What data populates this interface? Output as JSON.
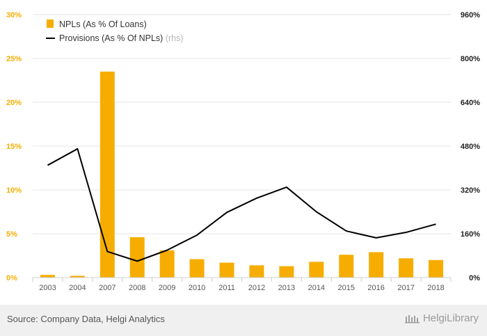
{
  "chart_data": {
    "type": "bar+line",
    "categories": [
      "2003",
      "2004",
      "2007",
      "2008",
      "2009",
      "2010",
      "2011",
      "2012",
      "2013",
      "2014",
      "2015",
      "2016",
      "2017",
      "2018"
    ],
    "series": [
      {
        "name": "NPLs (As % Of Loans)",
        "type": "bar",
        "axis": "left",
        "color": "#f6ad00",
        "values": [
          0.3,
          0.2,
          23.5,
          4.6,
          3.1,
          2.1,
          1.7,
          1.4,
          1.3,
          1.8,
          2.6,
          2.9,
          2.2,
          2.0
        ]
      },
      {
        "name": "Provisions (As % Of NPLs)",
        "name_suffix": "(rhs)",
        "type": "line",
        "axis": "right",
        "color": "#000000",
        "values": [
          410,
          470,
          95,
          60,
          100,
          155,
          238,
          290,
          330,
          240,
          170,
          145,
          165,
          195
        ]
      }
    ],
    "y_left": {
      "min": 0,
      "max": 30,
      "ticks": [
        "0%",
        "5%",
        "10%",
        "15%",
        "20%",
        "25%",
        "30%"
      ],
      "color": "#f6ad00"
    },
    "y_right": {
      "min": 0,
      "max": 960,
      "ticks": [
        "0%",
        "160%",
        "320%",
        "480%",
        "640%",
        "800%",
        "960%"
      ],
      "color": "#222222"
    },
    "grid": true,
    "legend_position": "top-left"
  },
  "footer": {
    "source": "Source: Company Data, Helgi Analytics",
    "brand": "HelgiLibrary"
  }
}
